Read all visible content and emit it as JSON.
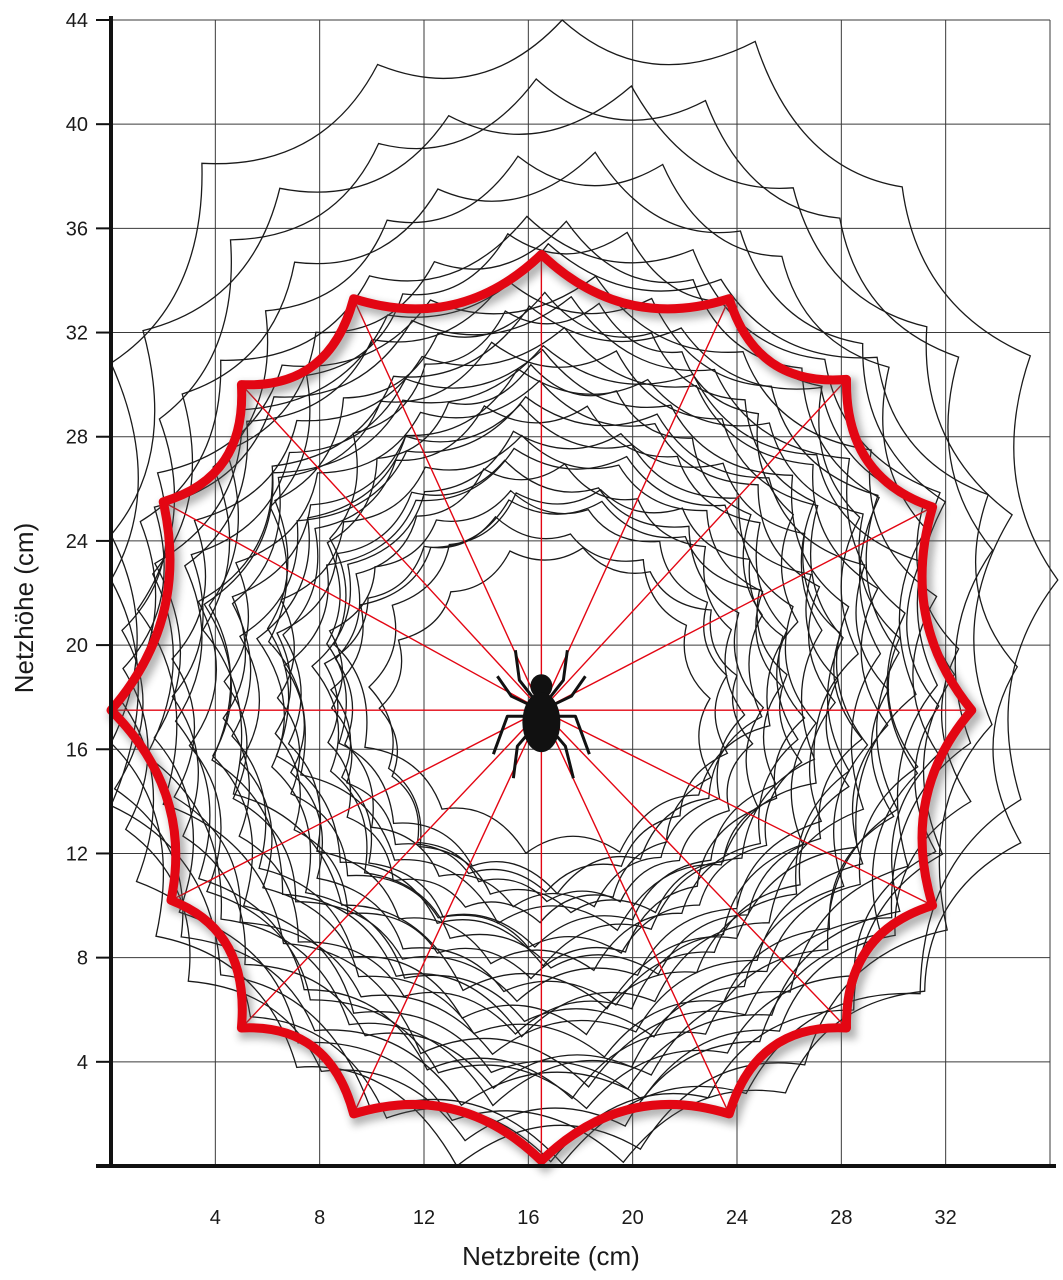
{
  "chart_data": {
    "type": "diagram",
    "xlabel": "Netzbreite (cm)",
    "ylabel": "Netzhöhe (cm)",
    "xlim": [
      0,
      36
    ],
    "ylim": [
      0,
      44
    ],
    "x_ticks": [
      4,
      8,
      12,
      16,
      20,
      24,
      28,
      32
    ],
    "y_ticks": [
      4,
      8,
      12,
      16,
      20,
      24,
      28,
      32,
      36,
      40,
      44
    ],
    "grid": true,
    "colors": {
      "highlight": "#e30613",
      "web": "#1a1a1a",
      "spider": "#111111"
    },
    "hub": [
      16.5,
      17.5
    ],
    "highlighted_web_anchors": [
      [
        16.5,
        35
      ],
      [
        23.7,
        33.3
      ],
      [
        28.2,
        30.2
      ],
      [
        31.5,
        25.3
      ],
      [
        33.0,
        17.5
      ],
      [
        31.5,
        10.0
      ],
      [
        28.2,
        5.3
      ],
      [
        23.7,
        2.0
      ],
      [
        16.5,
        0.2
      ],
      [
        9.3,
        2.0
      ],
      [
        5.0,
        5.3
      ],
      [
        2.3,
        10.2
      ],
      [
        0,
        17.5
      ],
      [
        2.0,
        25.5
      ],
      [
        5.0,
        30.0
      ],
      [
        9.3,
        33.3
      ]
    ],
    "background_webs": [
      {
        "center": [
          17.3,
          22.5
        ],
        "rx": 19.0,
        "ry": 22.0
      },
      {
        "center": [
          16.6,
          20.6
        ],
        "rx": 17.9,
        "ry": 20.6
      },
      {
        "center": [
          16.4,
          18.4
        ],
        "rx": 16.4,
        "ry": 17.8
      },
      {
        "center": [
          16.0,
          18.2
        ],
        "rx": 16.2,
        "ry": 15.7
      },
      {
        "center": [
          17.4,
          16.9
        ],
        "rx": 14.8,
        "ry": 14.3
      },
      {
        "center": [
          15.6,
          17.1
        ],
        "rx": 15.6,
        "ry": 16.0
      },
      {
        "center": [
          18.2,
          17.8
        ],
        "rx": 17.1,
        "ry": 17.2
      }
    ]
  }
}
